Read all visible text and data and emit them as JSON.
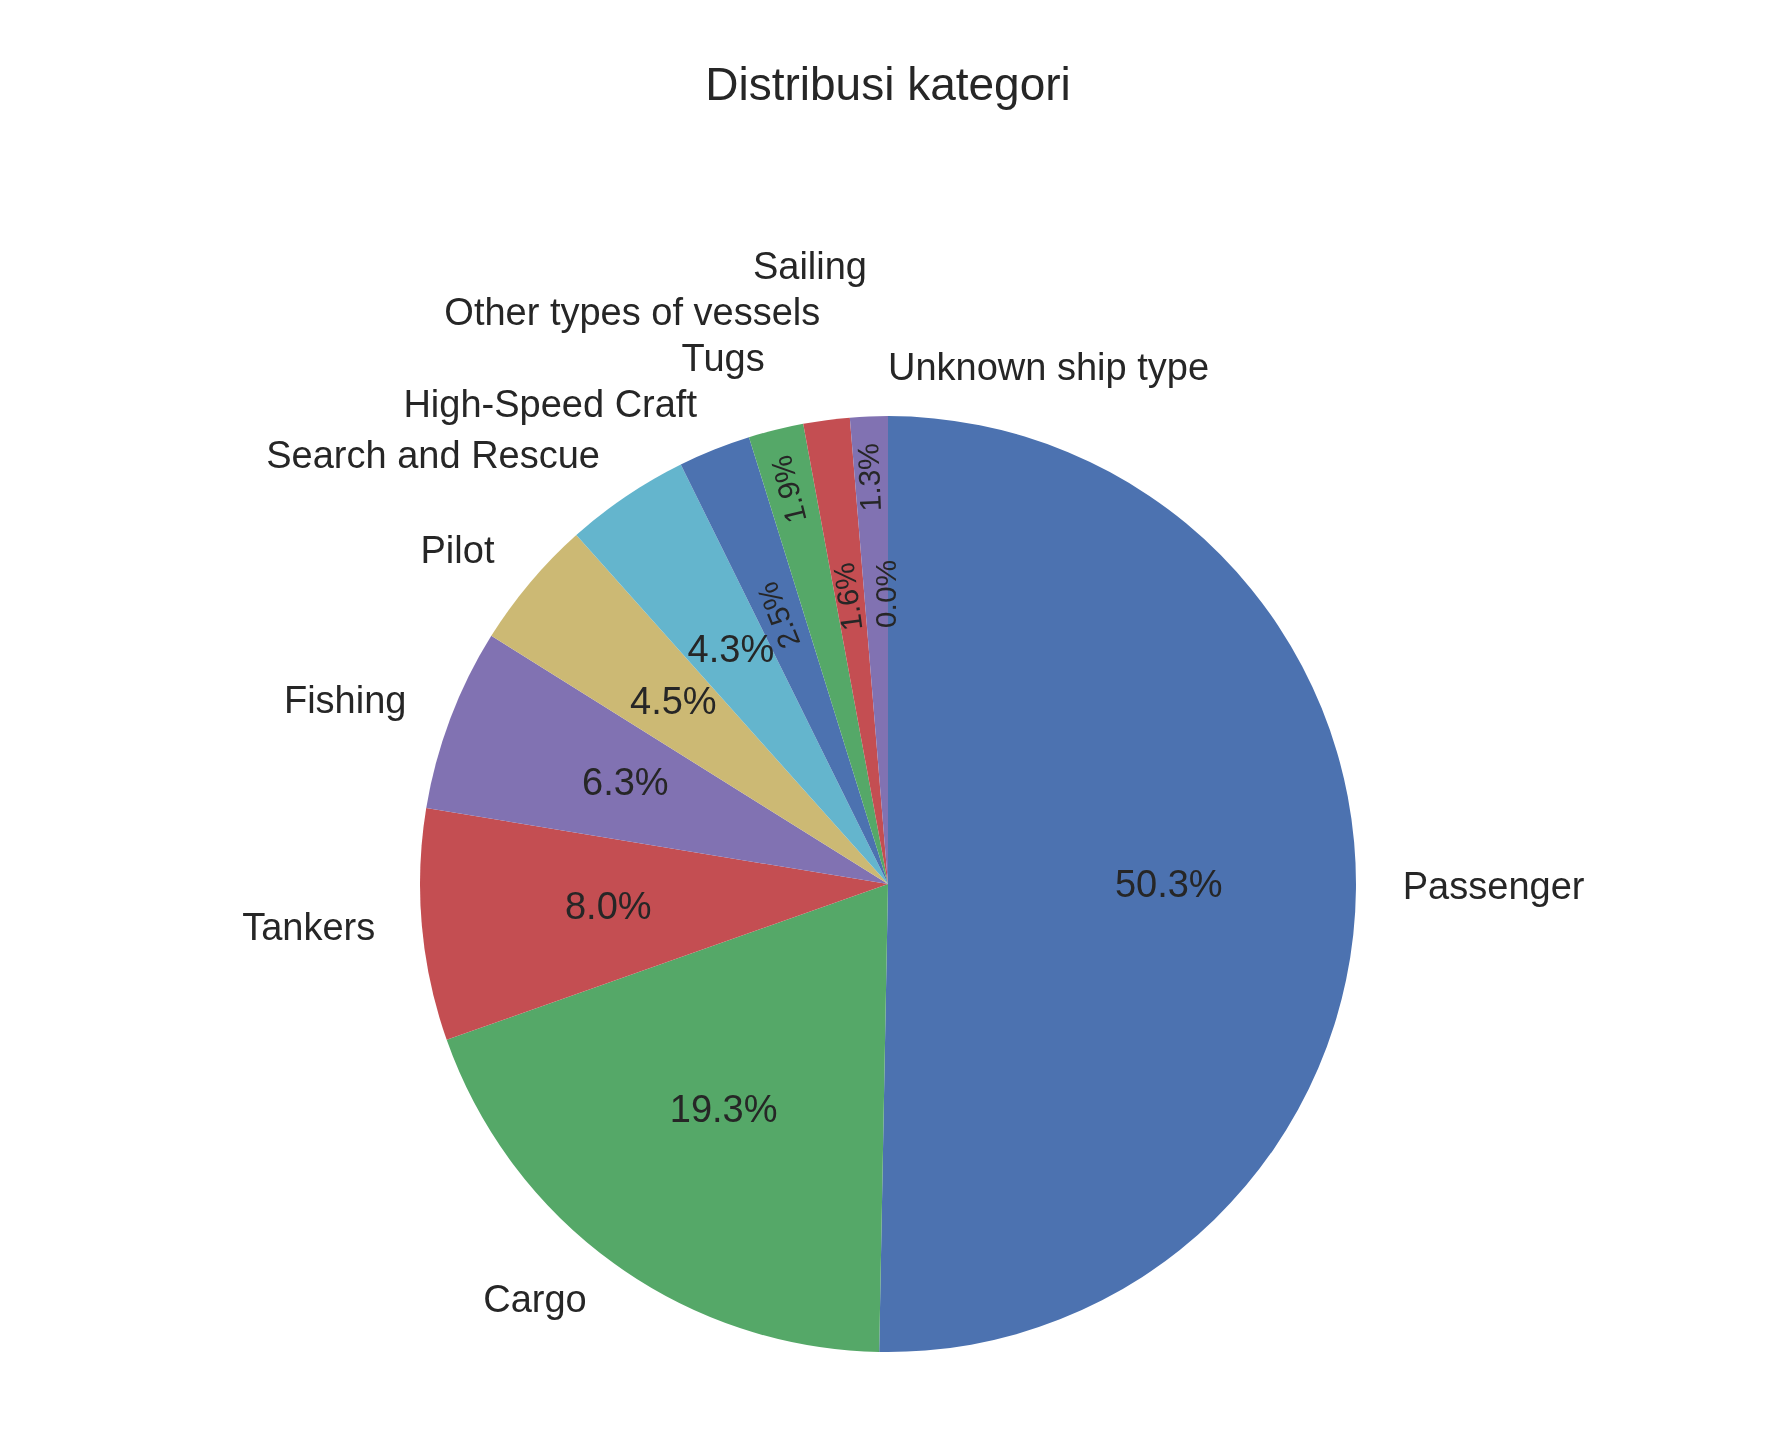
{
  "chart_data": {
    "type": "pie",
    "title": "Distribusi kategori",
    "categories": [
      "Passenger",
      "Cargo",
      "Tankers",
      "Fishing",
      "Pilot",
      "Search and Rescue",
      "High-Speed Craft",
      "Tugs",
      "Other types of vessels",
      "Sailing",
      "Unknown ship type"
    ],
    "values": [
      50.3,
      19.3,
      8.0,
      6.3,
      4.5,
      4.3,
      2.5,
      1.9,
      1.6,
      1.3,
      0.0
    ],
    "value_labels": [
      "50.3%",
      "19.3%",
      "8.0%",
      "6.3%",
      "4.5%",
      "4.3%",
      "2.5%",
      "1.9%",
      "1.6%",
      "1.3%",
      "0.0%"
    ],
    "colors": [
      "#4c72b0",
      "#55a868",
      "#c44e52",
      "#8172b2",
      "#ccb974",
      "#64b5cd",
      "#4c72b0",
      "#55a868",
      "#c44e52",
      "#8172b2",
      "#ccb974"
    ],
    "legend": false
  }
}
